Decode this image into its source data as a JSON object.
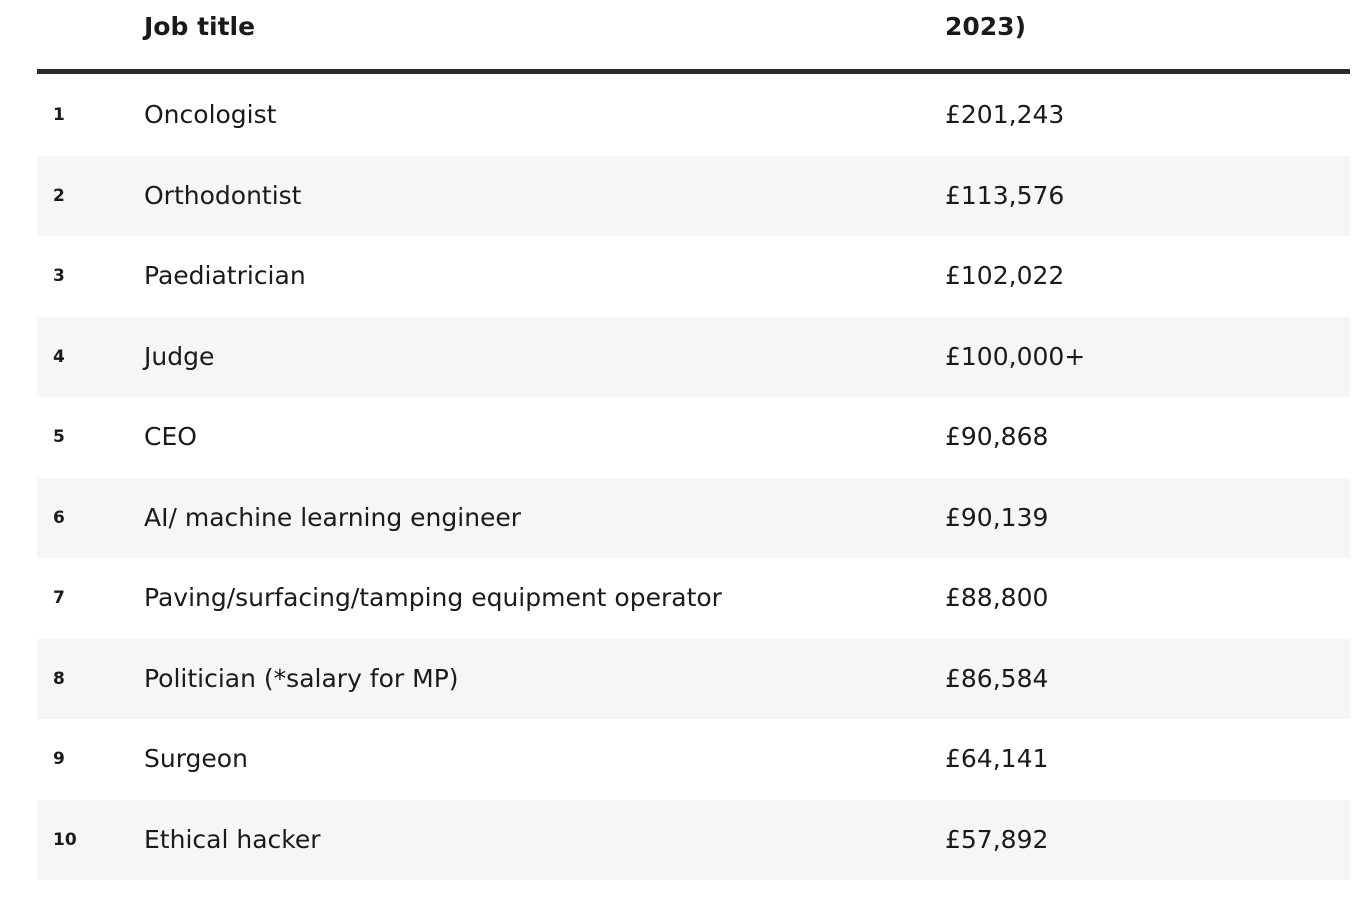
{
  "table": {
    "header": [
      "Job title",
      "2023)"
    ],
    "rows": [
      [
        1,
        "Oncologist",
        "£201,243"
      ],
      [
        2,
        "Orthodontist",
        "£113,576"
      ],
      [
        3,
        "Paediatrician",
        "£102,022"
      ],
      [
        4,
        "Judge",
        "£100,000+"
      ],
      [
        5,
        "CEO",
        "£90,868"
      ],
      [
        6,
        "AI/ machine learning engineer",
        "£90,139"
      ],
      [
        7,
        "Paving/surfacing/tamping equipment operator",
        "£88,800"
      ],
      [
        8,
        "Politician (*salary for MP)",
        "£86,584"
      ],
      [
        9,
        "Surgeon",
        "£64,141"
      ],
      [
        10,
        "Ethical hacker",
        "£57,892"
      ]
    ]
  }
}
